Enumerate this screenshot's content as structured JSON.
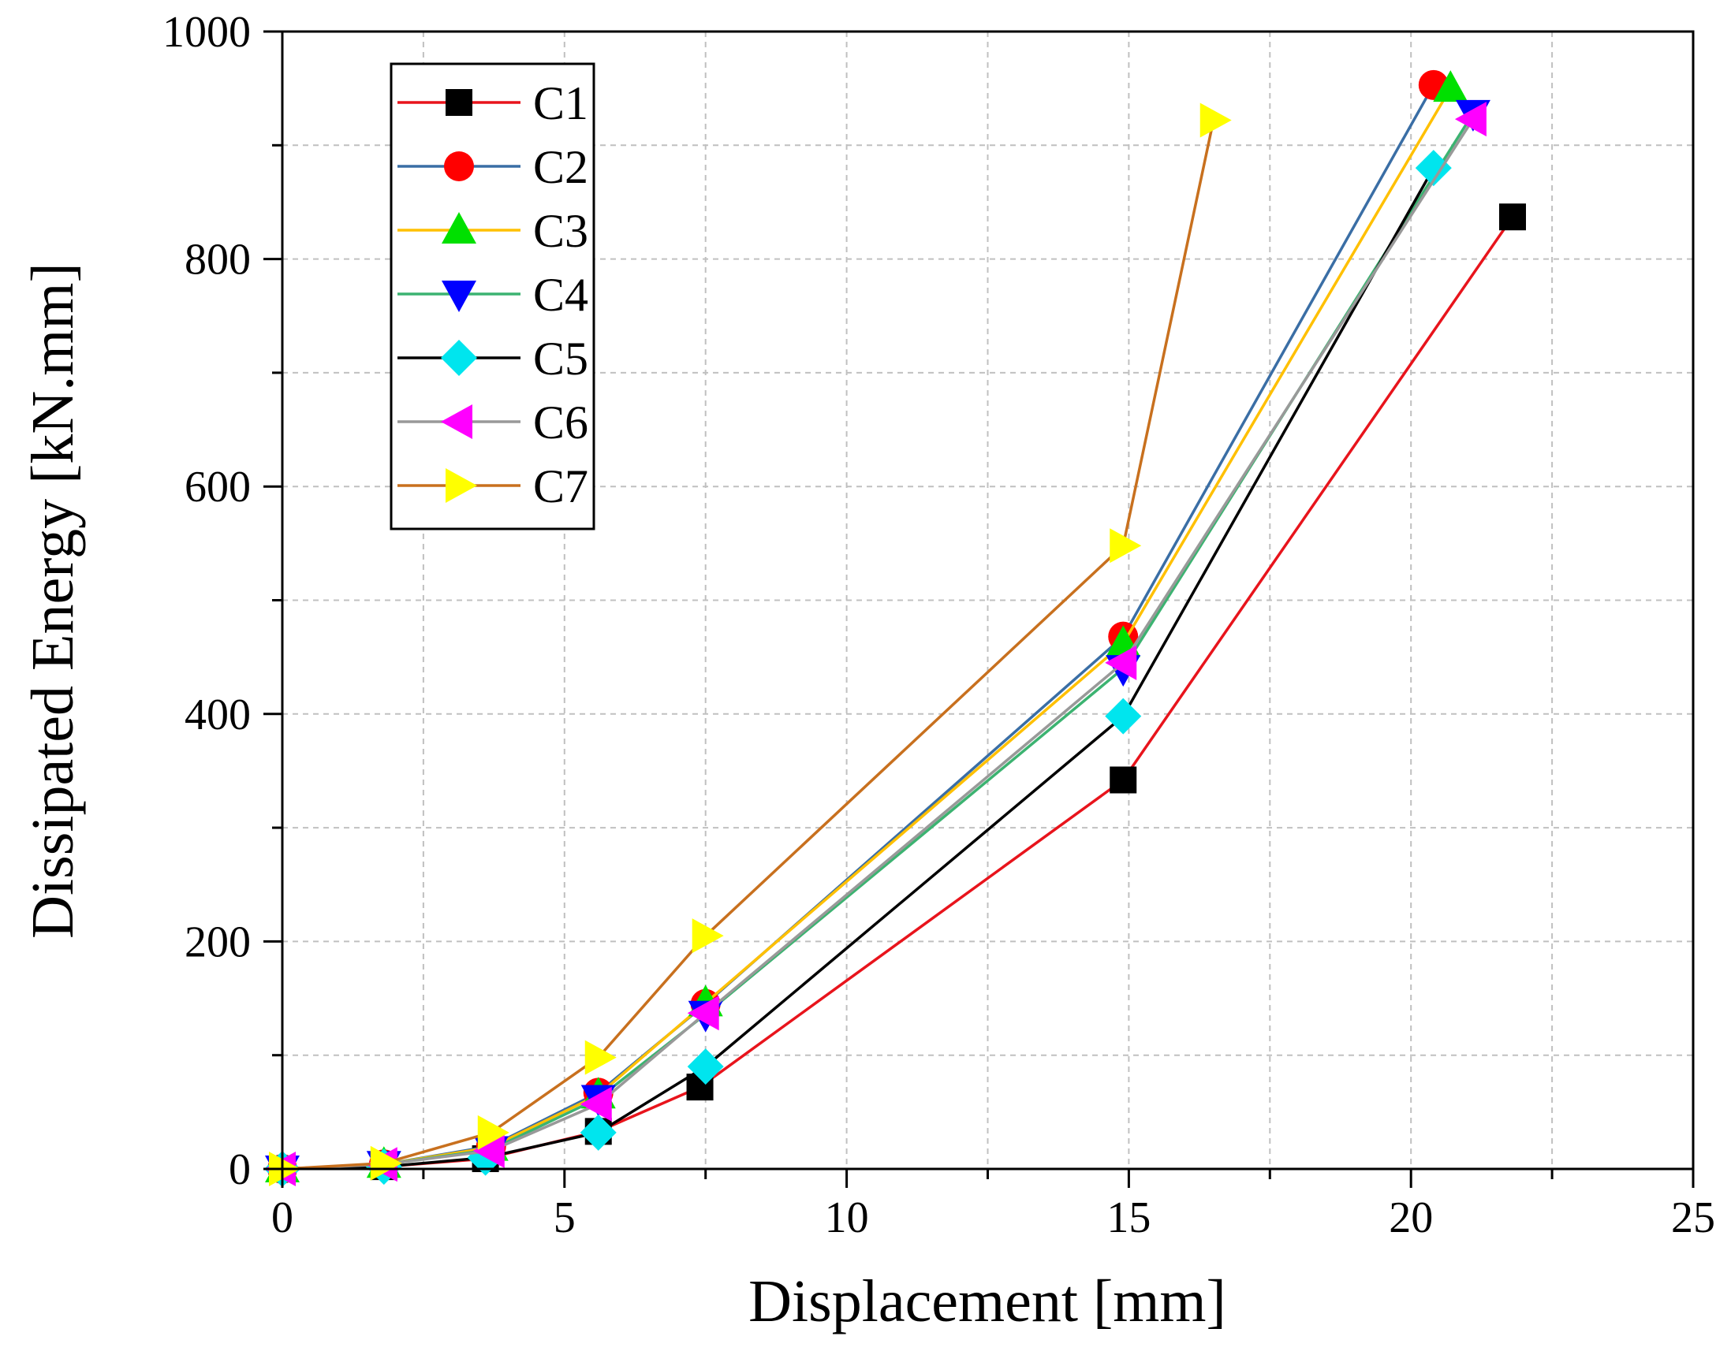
{
  "chart_data": {
    "type": "line",
    "title": "",
    "xlabel": "Displacement [mm]",
    "ylabel": "Dissipated Energy [kN.mm]",
    "xlim": [
      0,
      25
    ],
    "ylim": [
      0,
      1000
    ],
    "xticks": [
      0,
      5,
      10,
      15,
      20,
      25
    ],
    "yticks": [
      0,
      200,
      400,
      600,
      800,
      1000
    ],
    "grid": true,
    "legend_position": "top-left",
    "series": [
      {
        "name": "C1",
        "line_color": "#e8141c",
        "marker": "square",
        "marker_color": "#000000",
        "x": [
          0,
          1.8,
          3.6,
          5.6,
          7.4,
          14.9,
          21.8
        ],
        "y": [
          0,
          2,
          9,
          33,
          72,
          342,
          837
        ]
      },
      {
        "name": "C2",
        "line_color": "#3a6ea5",
        "marker": "circle",
        "marker_color": "#ff0000",
        "x": [
          0,
          1.8,
          3.7,
          5.6,
          7.5,
          14.9,
          20.4
        ],
        "y": [
          0,
          4,
          20,
          67,
          145,
          468,
          953
        ]
      },
      {
        "name": "C3",
        "line_color": "#ffc000",
        "marker": "triangle-up",
        "marker_color": "#00e000",
        "x": [
          0,
          1.8,
          3.7,
          5.6,
          7.5,
          14.9,
          20.7
        ],
        "y": [
          0,
          4,
          19,
          65,
          146,
          462,
          950
        ]
      },
      {
        "name": "C4",
        "line_color": "#3cb371",
        "marker": "triangle-down",
        "marker_color": "#0000ff",
        "x": [
          0,
          1.8,
          3.7,
          5.6,
          7.5,
          14.9,
          21.1
        ],
        "y": [
          0,
          4,
          17,
          62,
          136,
          440,
          928
        ]
      },
      {
        "name": "C5",
        "line_color": "#000000",
        "marker": "diamond",
        "marker_color": "#00e5ee",
        "x": [
          0,
          1.8,
          3.6,
          5.6,
          7.5,
          14.9,
          20.4
        ],
        "y": [
          0,
          2,
          10,
          32,
          90,
          398,
          880
        ]
      },
      {
        "name": "C6",
        "line_color": "#999999",
        "marker": "triangle-left",
        "marker_color": "#ff00ff",
        "x": [
          0,
          1.8,
          3.7,
          5.6,
          7.5,
          14.9,
          21.1
        ],
        "y": [
          0,
          4,
          16,
          57,
          137,
          445,
          923
        ]
      },
      {
        "name": "C7",
        "line_color": "#c8701e",
        "marker": "triangle-right",
        "marker_color": "#ffff00",
        "x": [
          0,
          1.8,
          3.7,
          5.6,
          7.5,
          14.9,
          16.5
        ],
        "y": [
          0,
          5,
          32,
          98,
          205,
          548,
          922
        ]
      }
    ]
  }
}
